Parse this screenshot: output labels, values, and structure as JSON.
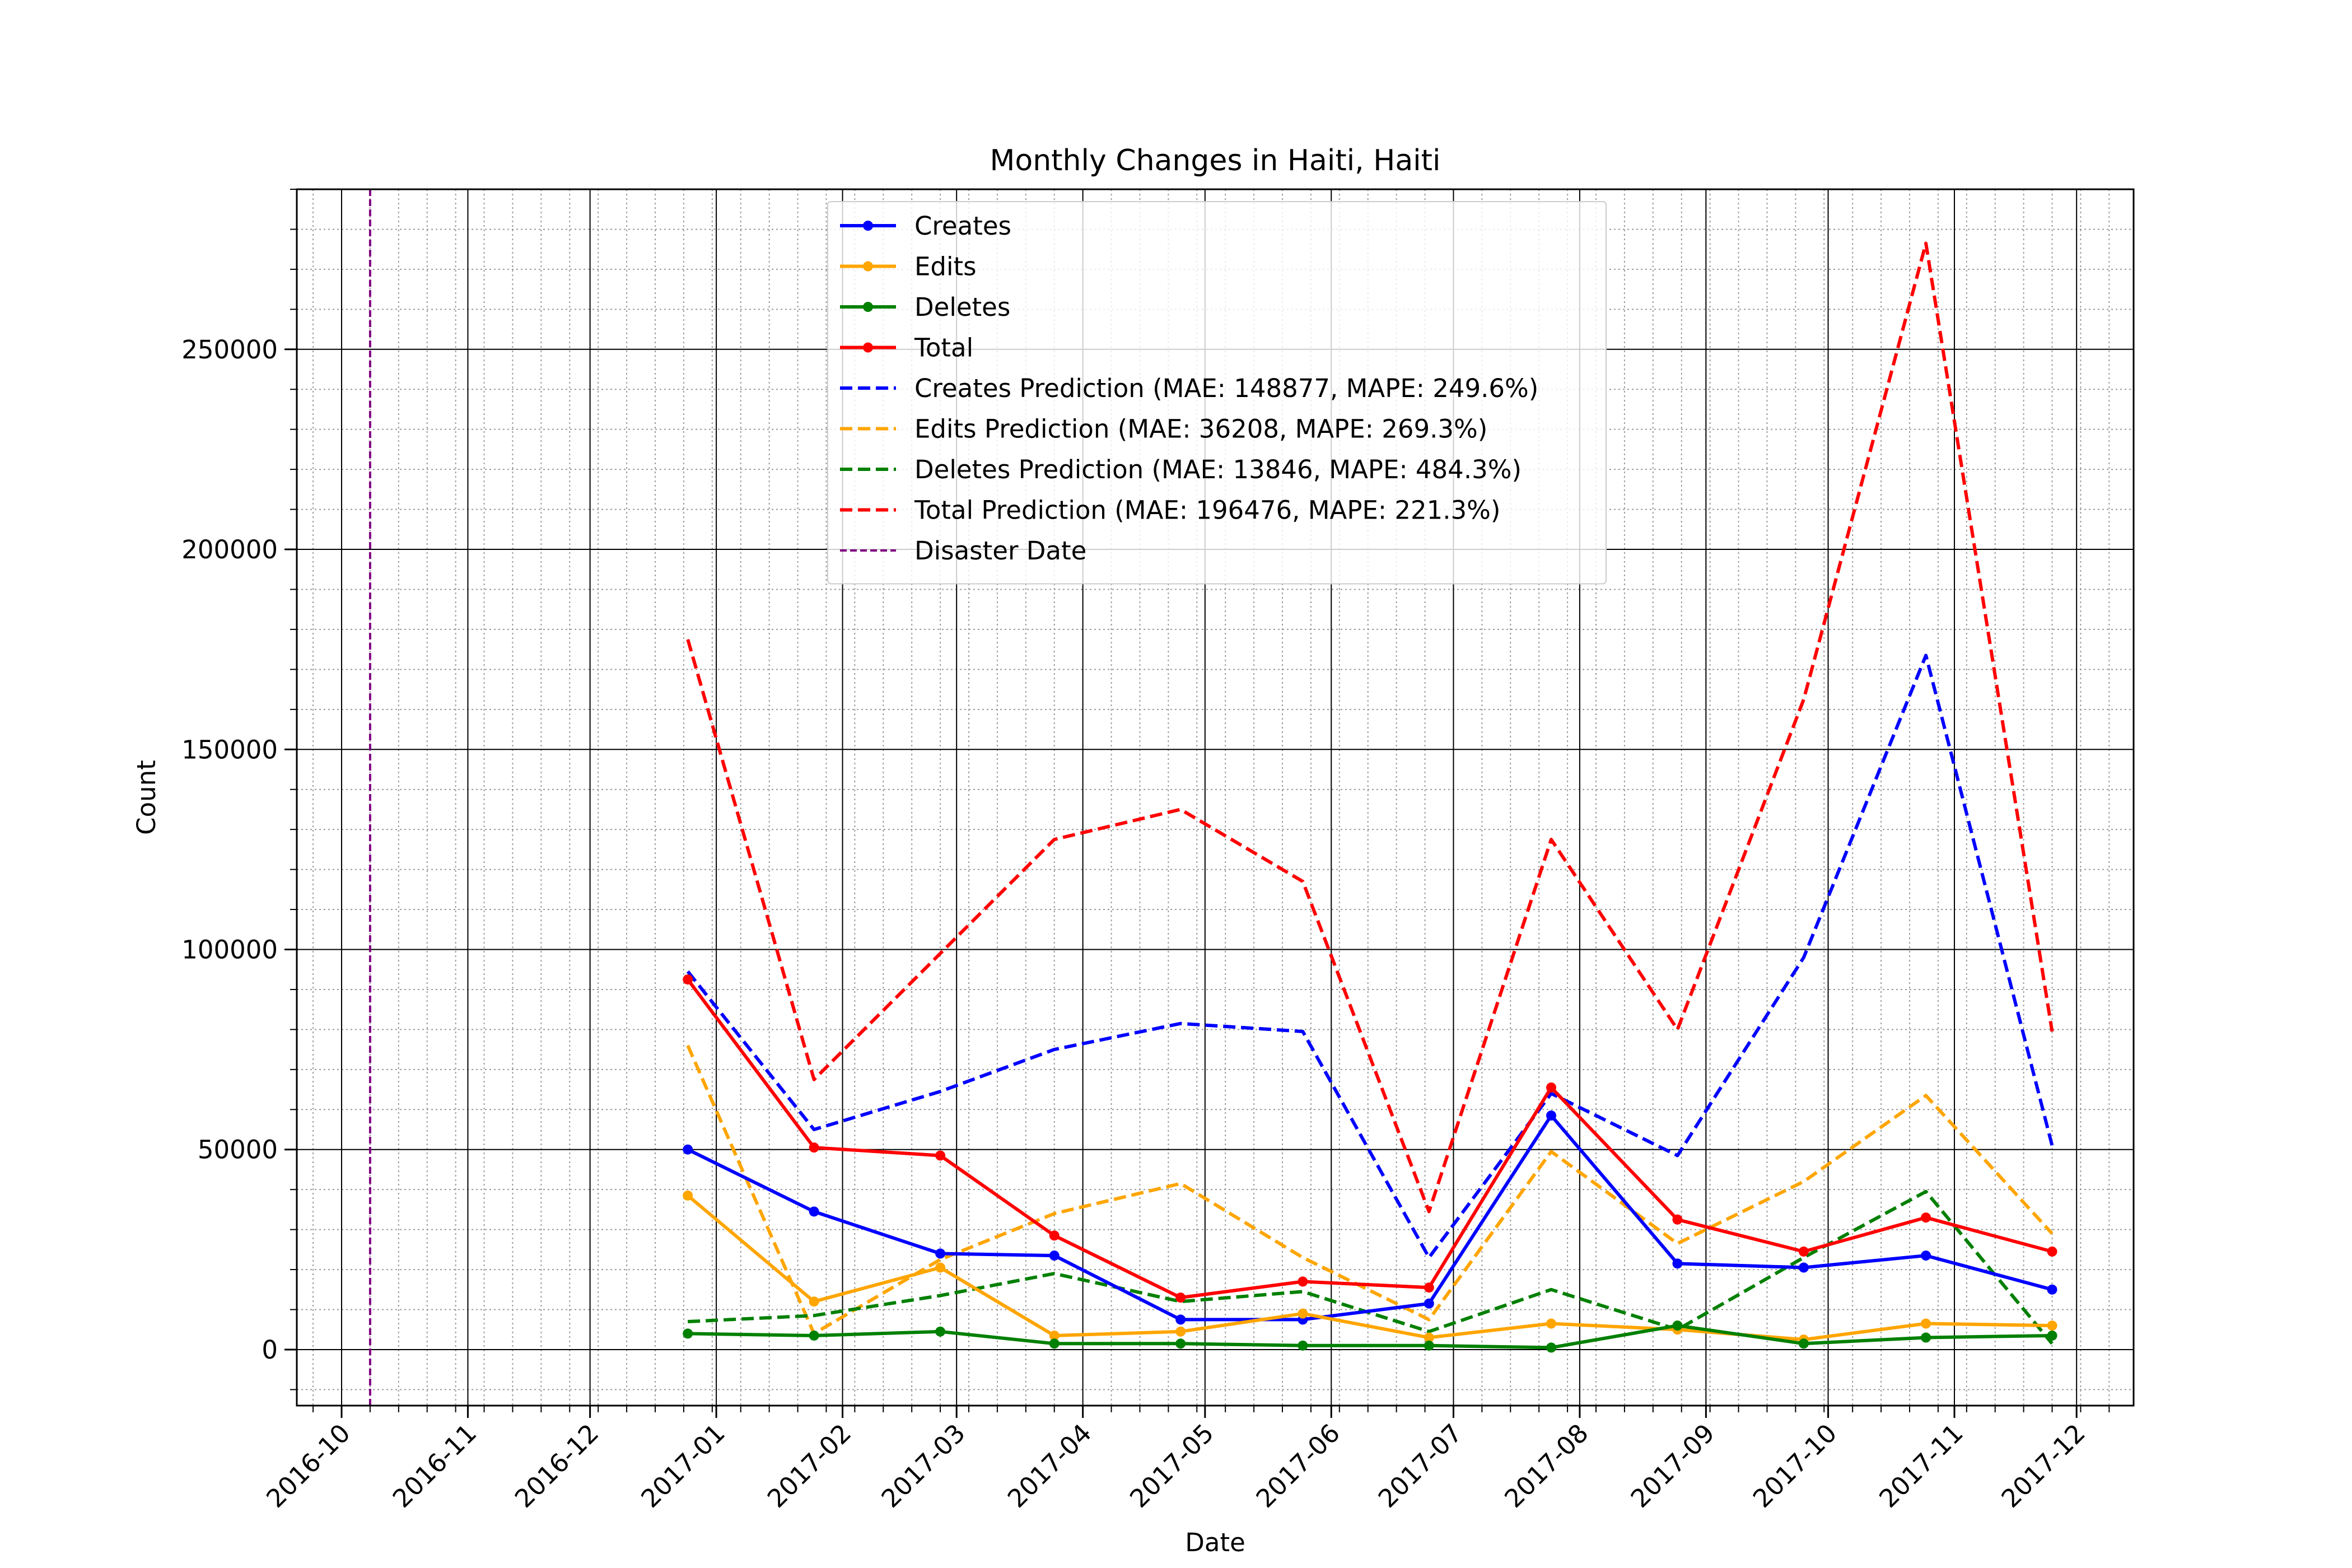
{
  "chart_data": {
    "type": "line",
    "title": "Monthly Changes in Haiti, Haiti",
    "xlabel": "Date",
    "ylabel": "Count",
    "grid": "on (major solid, minor dotted)",
    "legend_position": "top-center",
    "xlim": [
      "2016-09-20",
      "2017-12-15"
    ],
    "ylim": [
      -14000,
      290000
    ],
    "x_ticks": [
      "2016-10",
      "2016-11",
      "2016-12",
      "2017-01",
      "2017-02",
      "2017-03",
      "2017-04",
      "2017-05",
      "2017-06",
      "2017-07",
      "2017-08",
      "2017-09",
      "2017-10",
      "2017-11",
      "2017-12"
    ],
    "y_ticks": [
      "0",
      "50000",
      "100000",
      "150000",
      "200000",
      "250000"
    ],
    "x": [
      "2016-12-25",
      "2017-01-25",
      "2017-02-25",
      "2017-03-25",
      "2017-04-25",
      "2017-05-25",
      "2017-06-25",
      "2017-07-25",
      "2017-08-25",
      "2017-09-25",
      "2017-10-25",
      "2017-11-25"
    ],
    "series": [
      {
        "name": "Creates",
        "style": "solid-marker",
        "color": "#0000ff",
        "values": [
          50000,
          34500,
          24000,
          23500,
          7500,
          7500,
          11500,
          58500,
          21500,
          20500,
          23500,
          15000
        ]
      },
      {
        "name": "Edits",
        "style": "solid-marker",
        "color": "#ffa500",
        "values": [
          38500,
          12000,
          20500,
          3500,
          4500,
          9000,
          3000,
          6500,
          5000,
          2500,
          6500,
          6000
        ]
      },
      {
        "name": "Deletes",
        "style": "solid-marker",
        "color": "#008000",
        "values": [
          4000,
          3500,
          4500,
          1500,
          1500,
          1000,
          1000,
          500,
          6000,
          1500,
          3000,
          3500
        ]
      },
      {
        "name": "Total",
        "style": "solid-marker",
        "color": "#ff0000",
        "values": [
          92500,
          50500,
          48500,
          28500,
          13000,
          17000,
          15500,
          65500,
          32500,
          24500,
          33000,
          24500
        ]
      },
      {
        "name": "Creates Prediction (MAE: 148877, MAPE: 249.6%)",
        "style": "dashed",
        "color": "#0000ff",
        "values": [
          94500,
          55000,
          64500,
          75000,
          81500,
          79500,
          23000,
          64000,
          48500,
          98000,
          173500,
          51000
        ]
      },
      {
        "name": "Edits Prediction (MAE: 36208, MAPE: 269.3%)",
        "style": "dashed",
        "color": "#ffa500",
        "values": [
          76000,
          4000,
          22500,
          34000,
          41500,
          23000,
          7500,
          49500,
          26500,
          42000,
          63500,
          29000
        ]
      },
      {
        "name": "Deletes Prediction (MAE: 13846, MAPE: 484.3%)",
        "style": "dashed",
        "color": "#008000",
        "values": [
          7000,
          8500,
          13500,
          19000,
          12000,
          14500,
          4500,
          15000,
          5000,
          23000,
          39500,
          1500
        ]
      },
      {
        "name": "Total Prediction (MAE: 196476, MAPE: 221.3%)",
        "style": "dashed",
        "color": "#ff0000",
        "values": [
          177500,
          67500,
          99000,
          127500,
          135000,
          117000,
          34500,
          127500,
          80000,
          162500,
          276500,
          79500
        ]
      }
    ],
    "vlines": [
      {
        "name": "Disaster Date",
        "x": "2016-10-08",
        "style": "dashed",
        "color": "#800080"
      }
    ]
  }
}
